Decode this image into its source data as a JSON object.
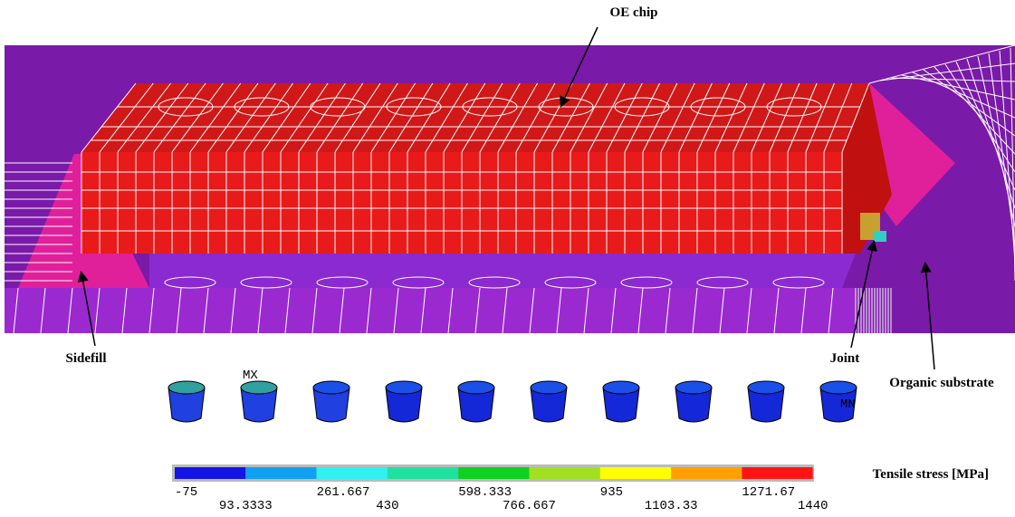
{
  "annotations": {
    "oe_chip": "OE chip",
    "sidefill": "Sidefill",
    "joint": "Joint",
    "organic_substrate": "Organic substrate",
    "max_marker": "MX",
    "min_marker": "MN"
  },
  "colorbar": {
    "title": "Tensile stress [MPa]",
    "colors": [
      "#1414e6",
      "#10a0f0",
      "#30f0f0",
      "#20e0a0",
      "#10d020",
      "#a0e020",
      "#ffff00",
      "#ffa000",
      "#ff1414"
    ],
    "upper_labels": [
      "-75",
      "261.667",
      "598.333",
      "935",
      "1271.67"
    ],
    "lower_labels": [
      "93.3333",
      "430",
      "766.667",
      "1103.33",
      "1440"
    ]
  }
}
